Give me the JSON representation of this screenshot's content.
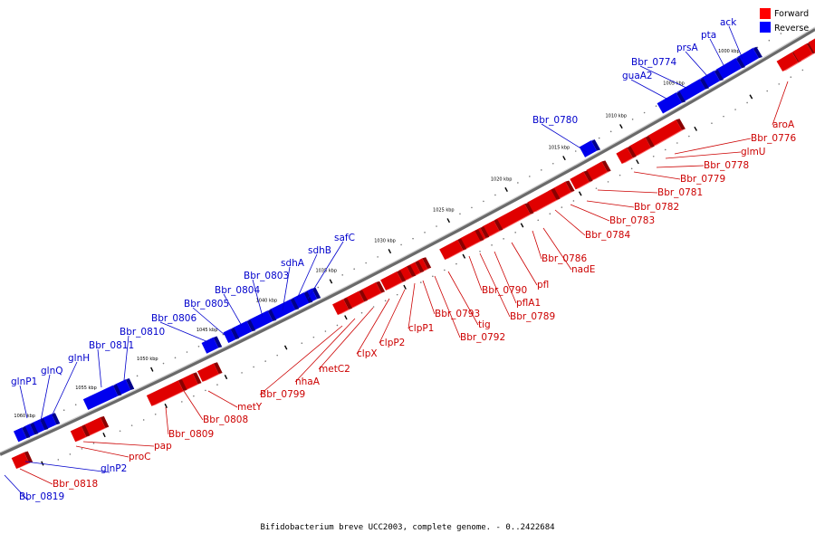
{
  "caption": "Bifidobacterium breve UCC2003, complete genome. - 0..2422684",
  "legend": {
    "forward_label": "Forward",
    "reverse_label": "Reverse",
    "forward_color": "#ff0000",
    "reverse_color": "#0000ff"
  },
  "ticks": [
    "1000 kbp",
    "1005 kbp",
    "1010 kbp",
    "1015 kbp",
    "1020 kbp",
    "1025 kbp",
    "1030 kbp",
    "1035 kbp",
    "1040 kbp",
    "1045 kbp",
    "1050 kbp",
    "1055 kbp",
    "1060 kbp"
  ],
  "forward_genes": [
    "aroA",
    "Bbr_0776",
    "glmU",
    "Bbr_0778",
    "Bbr_0779",
    "Bbr_0781",
    "Bbr_0782",
    "Bbr_0783",
    "Bbr_0784",
    "Bbr_0786",
    "nadE",
    "pfl",
    "pflA1",
    "Bbr_0789",
    "Bbr_0790",
    "Bbr_0792",
    "tig",
    "Bbr_0793",
    "clpP1",
    "clpP2",
    "clpX",
    "metC2",
    "nhaA",
    "Bbr_0799",
    "metY",
    "Bbr_0808",
    "Bbr_0809",
    "pap",
    "proC",
    "Bbr_0818"
  ],
  "reverse_genes": [
    "ack",
    "pta",
    "prsA",
    "Bbr_0774",
    "guaA2",
    "Bbr_0780",
    "safC",
    "sdhB",
    "sdhA",
    "Bbr_0803",
    "Bbr_0804",
    "Bbr_0805",
    "Bbr_0806",
    "Bbr_0810",
    "Bbr_0811",
    "glnH",
    "glnQ",
    "glnP1",
    "glnP2",
    "Bbr_0819"
  ]
}
